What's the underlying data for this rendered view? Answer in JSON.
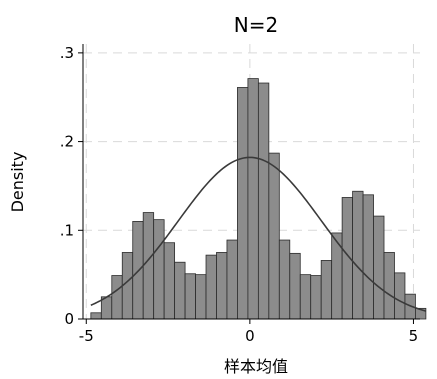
{
  "chart_data": {
    "type": "bar",
    "title": "N=2",
    "xlabel": "样本均值",
    "ylabel": "Density",
    "xlim": [
      -5.1,
      5.2
    ],
    "ylim": [
      0,
      0.31
    ],
    "xticks": [
      -5,
      0,
      5
    ],
    "xtick_labels": [
      "-5",
      "0",
      "5"
    ],
    "yticks": [
      0,
      0.1,
      0.2,
      0.3
    ],
    "ytick_labels": [
      "0",
      ".1",
      ".2",
      ".3"
    ],
    "grid": true,
    "colors": {
      "bar_fill": "#8c8c8c",
      "bar_edge": "#2b2b2b",
      "curve": "#3a3a3a",
      "grid": "#d9d9d9"
    },
    "histogram": {
      "bins": [
        {
          "x0": -4.86,
          "x1": -4.54,
          "density": 0.007
        },
        {
          "x0": -4.54,
          "x1": -4.22,
          "density": 0.025
        },
        {
          "x0": -4.22,
          "x1": -3.9,
          "density": 0.049
        },
        {
          "x0": -3.9,
          "x1": -3.58,
          "density": 0.075
        },
        {
          "x0": -3.58,
          "x1": -3.26,
          "density": 0.11
        },
        {
          "x0": -3.26,
          "x1": -2.94,
          "density": 0.12
        },
        {
          "x0": -2.94,
          "x1": -2.62,
          "density": 0.112
        },
        {
          "x0": -2.62,
          "x1": -2.3,
          "density": 0.086
        },
        {
          "x0": -2.3,
          "x1": -1.98,
          "density": 0.064
        },
        {
          "x0": -1.98,
          "x1": -1.66,
          "density": 0.051
        },
        {
          "x0": -1.66,
          "x1": -1.34,
          "density": 0.05
        },
        {
          "x0": -1.34,
          "x1": -1.02,
          "density": 0.072
        },
        {
          "x0": -1.02,
          "x1": -0.7,
          "density": 0.075
        },
        {
          "x0": -0.7,
          "x1": -0.38,
          "density": 0.089
        },
        {
          "x0": -0.38,
          "x1": -0.06,
          "density": 0.261
        },
        {
          "x0": -0.06,
          "x1": 0.26,
          "density": 0.271
        },
        {
          "x0": 0.26,
          "x1": 0.58,
          "density": 0.266
        },
        {
          "x0": 0.58,
          "x1": 0.9,
          "density": 0.187
        },
        {
          "x0": 0.9,
          "x1": 1.22,
          "density": 0.089
        },
        {
          "x0": 1.22,
          "x1": 1.54,
          "density": 0.074
        },
        {
          "x0": 1.54,
          "x1": 1.86,
          "density": 0.05
        },
        {
          "x0": 1.86,
          "x1": 2.18,
          "density": 0.049
        },
        {
          "x0": 2.18,
          "x1": 2.5,
          "density": 0.066
        },
        {
          "x0": 2.5,
          "x1": 2.82,
          "density": 0.097
        },
        {
          "x0": 2.82,
          "x1": 3.14,
          "density": 0.137
        },
        {
          "x0": 3.14,
          "x1": 3.46,
          "density": 0.144
        },
        {
          "x0": 3.46,
          "x1": 3.78,
          "density": 0.14
        },
        {
          "x0": 3.78,
          "x1": 4.1,
          "density": 0.116
        },
        {
          "x0": 4.1,
          "x1": 4.42,
          "density": 0.075
        },
        {
          "x0": 4.42,
          "x1": 4.74,
          "density": 0.052
        },
        {
          "x0": 4.74,
          "x1": 5.06,
          "density": 0.028
        },
        {
          "x0": 5.06,
          "x1": 5.38,
          "density": 0.012
        }
      ]
    },
    "normal_curve": {
      "mean": 0.0,
      "sd": 2.19
    }
  }
}
